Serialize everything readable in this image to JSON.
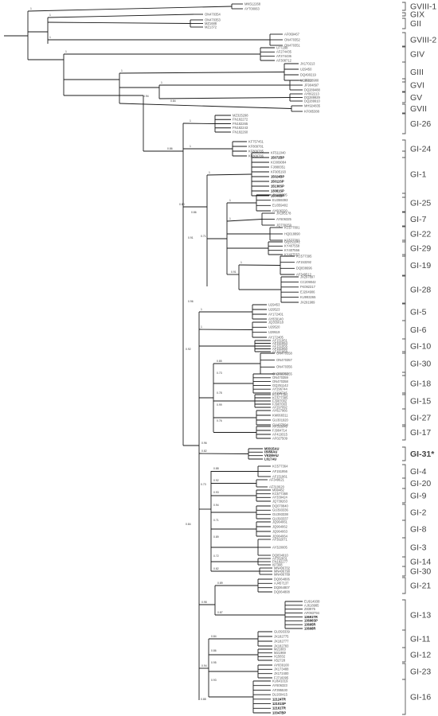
{
  "figure": "phylogenetic-tree",
  "genotypes": [
    {
      "label": "GVIII-1",
      "bold": false,
      "tips": [
        "MN512268",
        "AY700063"
      ]
    },
    {
      "label": "GIX",
      "bold": false,
      "tips": [
        "ON470354"
      ]
    },
    {
      "label": "GII",
      "bold": false,
      "tips": [
        "ON470353",
        "MZ1688",
        "MZ1372"
      ]
    },
    {
      "label": "GVIII-2",
      "bold": false,
      "tips": [
        "AF069467",
        "ON470352",
        "ON470351"
      ]
    },
    {
      "label": "GIV",
      "bold": false,
      "tips": [
        "U77298",
        "AF274435",
        "AF274436",
        "AF308712"
      ]
    },
    {
      "label": "GIII",
      "bold": false,
      "tips": [
        "JX170213",
        "U29450",
        "DQ490219",
        "U29521"
      ]
    },
    {
      "label": "GVI",
      "bold": false,
      "tips": [
        "JF828980",
        "JF904897",
        "DQ289488"
      ]
    },
    {
      "label": "GV",
      "bold": false,
      "tips": [
        "AY862213",
        "DQ289929",
        "DQ289910"
      ]
    },
    {
      "label": "GVII",
      "bold": false,
      "tips": [
        "MH924835",
        "KF085388"
      ]
    },
    {
      "label": "GI-26",
      "bold": false,
      "tips": [
        "MZ325298",
        "FN182272",
        "FN182265",
        "FN182243",
        "FN182260"
      ]
    },
    {
      "label": "GI-24",
      "bold": false,
      "tips": [
        "KF757451",
        "KF809781",
        "KF809785",
        "KF809786"
      ]
    },
    {
      "label": "GI-1",
      "bold": false,
      "tips": [
        "KF511040",
        "15072BP",
        "KC009084",
        "FJ888351",
        "KF905193",
        "15024BP",
        "15011SP",
        "15136SP",
        "13081SP",
        "15006BP"
      ]
    },
    {
      "label": "GI-25",
      "bold": false,
      "tips": [
        "JN192805",
        "EU359393",
        "EU359402",
        "AY606320"
      ]
    },
    {
      "label": "GI-7",
      "bold": false,
      "tips": [
        "JX195178",
        "AY606325",
        "JQ739259"
      ]
    },
    {
      "label": "GI-22",
      "bold": false,
      "tips": [
        "KC577801",
        "HQ018890",
        "KC577382"
      ]
    },
    {
      "label": "GI-29",
      "bold": false,
      "tips": [
        "GQ251142",
        "KY407558",
        "KY407556",
        "KY407557"
      ]
    },
    {
      "label": "GI-19",
      "bold": false,
      "tips": [
        "KC577395",
        "AF153292",
        "DQ838696",
        "AF349512"
      ]
    },
    {
      "label": "GI-28",
      "bold": false,
      "tips": [
        "JX297897",
        "CC209042",
        "FK092317",
        "EJ204906",
        "KU993265",
        "JX291989"
      ]
    },
    {
      "label": "GI-5",
      "bold": false,
      "tips": [
        "U29453",
        "U29523",
        "AY172401",
        "AY839140"
      ]
    },
    {
      "label": "GI-6",
      "bold": false,
      "tips": [
        "JQ355018",
        "U29520",
        "U29519",
        "AY172405"
      ]
    },
    {
      "label": "GI-10",
      "bold": false,
      "tips": [
        "AF151951",
        "AF151954",
        "AF151955",
        "AF151950",
        "AF151958"
      ]
    },
    {
      "label": "GI-30",
      "bold": false,
      "tips": [
        "ON470358",
        "ON470357",
        "ON470356",
        "ON470355"
      ]
    },
    {
      "label": "GI-18",
      "bold": false,
      "tips": [
        "ON470360",
        "ON470359",
        "ON470358",
        "GQ251142",
        "AY296744",
        "AY296745"
      ]
    },
    {
      "label": "GI-15",
      "bold": false,
      "tips": [
        "KC577391",
        "KC577385",
        "FJ907002",
        "FJ907003",
        "AY297092"
      ]
    },
    {
      "label": "GI-27",
      "bold": false,
      "tips": [
        "AY827966",
        "KM068311",
        "GU301920",
        "GU437994"
      ]
    },
    {
      "label": "GI-17",
      "bold": false,
      "tips": [
        "AF353649",
        "FJ904714",
        "AF419315",
        "AF027509"
      ]
    },
    {
      "label": "GI-31*",
      "bold": true,
      "tips": [
        "M3015AU",
        "I3956AU",
        "V6159AU",
        "L617AU"
      ]
    },
    {
      "label": "GI-4",
      "bold": false,
      "tips": [
        "KC577364",
        "AF151956",
        "AF151961"
      ]
    },
    {
      "label": "GI-20",
      "bold": false,
      "tips": [
        "AF349621",
        "AF310620"
      ]
    },
    {
      "label": "GI-9",
      "bold": false,
      "tips": [
        "M99482",
        "KC577368",
        "AY339424",
        "JQ739263"
      ]
    },
    {
      "label": "GI-2",
      "bold": false,
      "tips": [
        "DQ070840",
        "GU393336",
        "GU393338",
        "GU393337"
      ]
    },
    {
      "label": "GI-8",
      "bold": false,
      "tips": [
        "JQ964061",
        "JQ964062",
        "JQ964063",
        "JQ964064"
      ]
    },
    {
      "label": "GI-3",
      "bold": false,
      "tips": [
        "AY392071",
        "AY320005",
        "DQ834910"
      ]
    },
    {
      "label": "GI-14",
      "bold": false,
      "tips": [
        "AF352831",
        "FN182277",
        "I97308"
      ]
    },
    {
      "label": "GI-30",
      "bold": false,
      "tips": [
        "MN406702",
        "MN406790",
        "MN406789"
      ]
    },
    {
      "label": "GI-21",
      "bold": false,
      "tips": [
        "DQ064806",
        "AJ457137",
        "DQ064807",
        "DQ064808"
      ]
    },
    {
      "label": "GI-13",
      "bold": false,
      "tips": [
        "EU914938",
        "AJ618985",
        "Z83975",
        "AF093794",
        "13691TR",
        "13696SP",
        "13695R",
        "13698R"
      ]
    },
    {
      "label": "GI-11",
      "bold": false,
      "tips": [
        "GU393339",
        "JX182775",
        "JX182777",
        "JX182783"
      ]
    },
    {
      "label": "GI-12",
      "bold": false,
      "tips": [
        "M21883",
        "M21969",
        "X15832",
        "X52728"
      ]
    },
    {
      "label": "GI-23",
      "bold": false,
      "tips": [
        "AY839100",
        "JX173488",
        "JX172400",
        "FJ716095"
      ]
    },
    {
      "label": "GI-16",
      "bold": false,
      "tips": [
        "KU641019",
        "AY606323",
        "AF395530",
        "DL930415",
        "12124TR",
        "12101SP",
        "12161TR",
        "13347BP"
      ]
    }
  ],
  "boldTips": [
    "15072BP",
    "15024BP",
    "15011SP",
    "15136SP",
    "13081SP",
    "15006BP",
    "M3015AU",
    "I3956AU",
    "V6159AU",
    "L617AU",
    "13691TR",
    "13696SP",
    "13695R",
    "13698R",
    "12124TR",
    "12101SP",
    "12161TR",
    "13347BP"
  ],
  "support": [
    "1",
    "1",
    "1",
    "1",
    "1",
    "1",
    "1",
    "1",
    "1",
    "1",
    "1",
    "1",
    "1",
    "1",
    "0.84",
    "0.80",
    "0.86",
    "0.71",
    "0.91",
    "0.85",
    "0.73",
    "0.78",
    "0.99",
    "0.76",
    "0.96",
    "0.82",
    "0.88",
    "0.92",
    "0.93",
    "0.94",
    "0.71",
    "0.89",
    "0.72",
    "0.82",
    "0.89",
    "0.87",
    "0.98",
    "0.84",
    "0.86",
    "0.95",
    "0.93",
    "0.94",
    "0.84",
    "0.92",
    "0.91",
    "0.96",
    "0.86",
    "0.94",
    "0.73",
    "0.88"
  ]
}
